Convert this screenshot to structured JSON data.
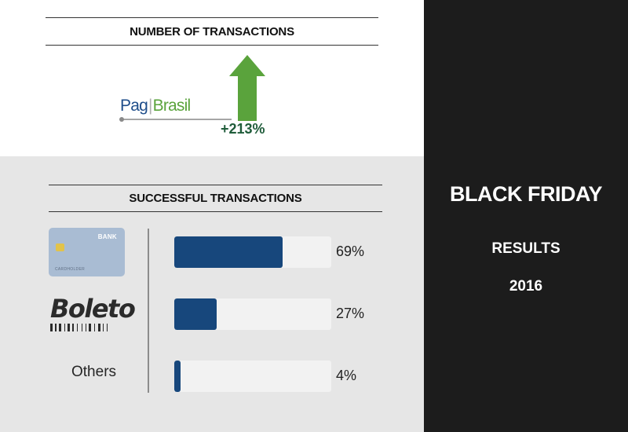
{
  "header": {
    "brand_title": "BLACK FRIDAY",
    "subtitle": "RESULTS",
    "year": "2016"
  },
  "transactions": {
    "title": "NUMBER OF TRANSACTIONS",
    "logo": {
      "part1": "Pag",
      "separator": "|",
      "part2": "Brasil"
    },
    "growth_label": "+213%",
    "arrow_icon": "up-arrow-icon"
  },
  "successful": {
    "title": "SUCCESSFUL TRANSACTIONS",
    "card": {
      "bank_text": "BANK",
      "holder_text": "CARDHOLDER",
      "icon": "credit-card-icon"
    },
    "boleto": {
      "word": "Boleto",
      "icon": "barcode-icon"
    },
    "others_label": "Others"
  },
  "colors": {
    "bar_fill": "#17477c",
    "bar_track": "#f2f2f2",
    "arrow": "#5aa33c",
    "growth_text": "#1f5c3a",
    "right_panel": "#1c1c1c"
  },
  "chart_data": [
    {
      "type": "bar",
      "title": "NUMBER OF TRANSACTIONS",
      "categories": [
        "PagBrasil"
      ],
      "series": [
        {
          "values": [
            213
          ]
        }
      ],
      "data_labels": [
        "+213%"
      ],
      "unit": "%"
    },
    {
      "type": "bar",
      "orientation": "horizontal",
      "title": "SUCCESSFUL TRANSACTIONS",
      "categories": [
        "Card",
        "Boleto",
        "Others"
      ],
      "values": [
        69,
        27,
        4
      ],
      "data_labels": [
        "69%",
        "27%",
        "4%"
      ],
      "xlim": [
        0,
        100
      ],
      "unit": "%"
    }
  ]
}
